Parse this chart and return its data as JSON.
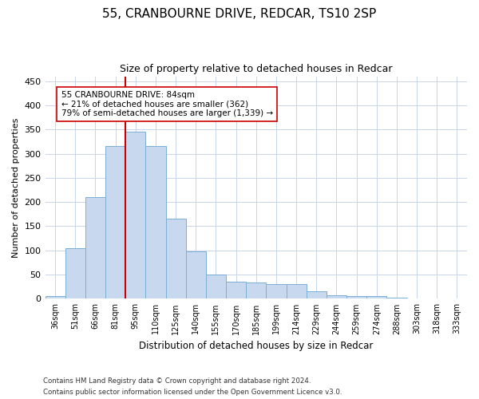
{
  "title1": "55, CRANBOURNE DRIVE, REDCAR, TS10 2SP",
  "title2": "Size of property relative to detached houses in Redcar",
  "xlabel": "Distribution of detached houses by size in Redcar",
  "ylabel": "Number of detached properties",
  "categories": [
    "36sqm",
    "51sqm",
    "66sqm",
    "81sqm",
    "95sqm",
    "110sqm",
    "125sqm",
    "140sqm",
    "155sqm",
    "170sqm",
    "185sqm",
    "199sqm",
    "214sqm",
    "229sqm",
    "244sqm",
    "259sqm",
    "274sqm",
    "288sqm",
    "303sqm",
    "318sqm",
    "333sqm"
  ],
  "values": [
    5,
    105,
    210,
    315,
    345,
    315,
    165,
    98,
    50,
    35,
    33,
    30,
    30,
    15,
    8,
    5,
    5,
    2,
    1,
    1,
    1
  ],
  "bar_color": "#c8d9ef",
  "bar_edge_color": "#7aafd4",
  "vline_color": "#cc0000",
  "vline_x": 3.5,
  "annotation_text": "55 CRANBOURNE DRIVE: 84sqm\n← 21% of detached houses are smaller (362)\n79% of semi-detached houses are larger (1,339) →",
  "annotation_box_color": "#ffffff",
  "annotation_box_edge_color": "#cc0000",
  "ylim": [
    0,
    460
  ],
  "yticks": [
    0,
    50,
    100,
    150,
    200,
    250,
    300,
    350,
    400,
    450
  ],
  "footer1": "Contains HM Land Registry data © Crown copyright and database right 2024.",
  "footer2": "Contains public sector information licensed under the Open Government Licence v3.0.",
  "bg_color": "#ffffff",
  "grid_color": "#c8d4e8"
}
